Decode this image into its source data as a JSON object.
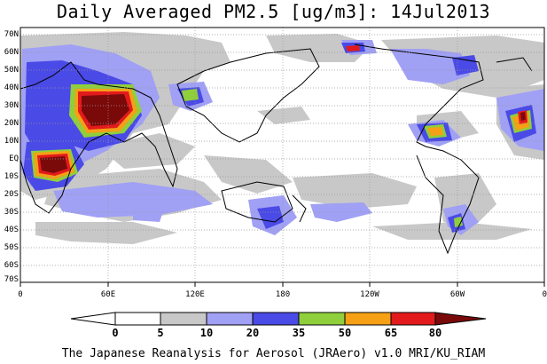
{
  "title": "Daily Averaged PM2.5 [ug/m3]: 14Jul2013",
  "lat_labels": [
    "70N",
    "60N",
    "50N",
    "40N",
    "30N",
    "20N",
    "10N",
    "EQ",
    "10S",
    "20S",
    "30S",
    "40S",
    "50S",
    "60S",
    "70S"
  ],
  "lon_labels": [
    "0",
    "60E",
    "120E",
    "180",
    "120W",
    "60W",
    "0"
  ],
  "colorbar": {
    "levels": [
      "0",
      "5",
      "10",
      "20",
      "35",
      "50",
      "65",
      "80"
    ],
    "colors": [
      "#ffffff",
      "#c8c8c8",
      "#a0a0f5",
      "#4a4ae6",
      "#8fcf3c",
      "#f5a015",
      "#e31a1c",
      "#7a0a0a"
    ]
  },
  "footer": "The Japanese Reanalysis for Aerosol (JRAero) v1.0 MRI/KU_RIAM"
}
